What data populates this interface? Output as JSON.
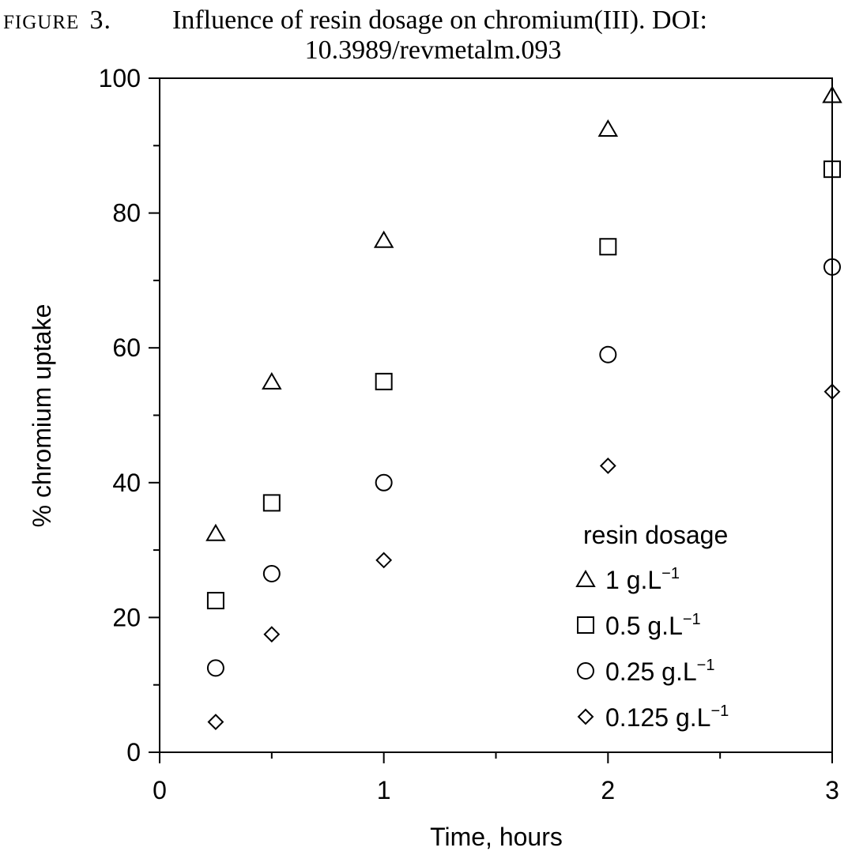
{
  "caption": {
    "label": "FIGURE",
    "number": "3.",
    "line1": "Influence of resin dosage on chromium(III). DOI:",
    "line2": "10.3989/revmetalm.093"
  },
  "chart_data": {
    "type": "scatter",
    "xlabel": "Time, hours",
    "ylabel": "% chromium uptake",
    "xlim": [
      0,
      3
    ],
    "ylim": [
      0,
      100
    ],
    "x_ticks": [
      "0",
      "1",
      "2",
      "3"
    ],
    "y_ticks": [
      "0",
      "20",
      "40",
      "60",
      "80",
      "100"
    ],
    "x_minor_tick_values": [
      0.5,
      1.5,
      2.5
    ],
    "y_minor_tick_values": [
      10,
      30,
      50,
      70,
      90
    ],
    "grid": false,
    "legend": {
      "title": "resin dosage",
      "placement": "bottom-right"
    },
    "series": [
      {
        "name": "1 g.L",
        "unit_superscript": "−1",
        "marker": "triangle",
        "x": [
          0.25,
          0.5,
          1,
          2,
          3
        ],
        "y": [
          32.5,
          55,
          76,
          92.5,
          97.5
        ]
      },
      {
        "name": "0.5 g.L",
        "unit_superscript": "−1",
        "marker": "square",
        "x": [
          0.25,
          0.5,
          1,
          2,
          3
        ],
        "y": [
          22.5,
          37,
          55,
          75,
          86.5
        ]
      },
      {
        "name": "0.25 g.L",
        "unit_superscript": "−1",
        "marker": "circle",
        "x": [
          0.25,
          0.5,
          1,
          2,
          3
        ],
        "y": [
          12.5,
          26.5,
          40,
          59,
          72
        ]
      },
      {
        "name": "0.125 g.L",
        "unit_superscript": "−1",
        "marker": "diamond",
        "x": [
          0.25,
          0.5,
          1,
          2,
          3
        ],
        "y": [
          4.5,
          17.5,
          28.5,
          42.5,
          53.5
        ]
      }
    ]
  }
}
